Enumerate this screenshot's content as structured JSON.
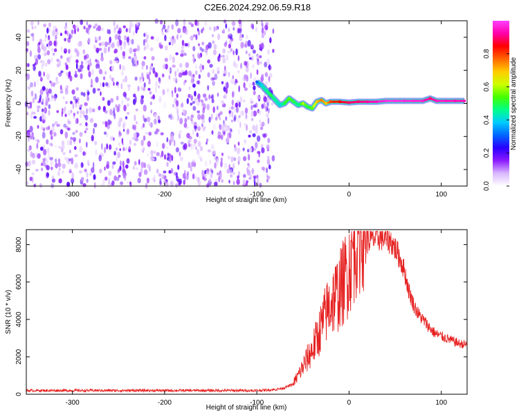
{
  "page_title": "C2E6.2024.292.06.59.R18",
  "chart_data": [
    {
      "type": "heatmap",
      "title": "C2E6.2024.292.06.59.R18",
      "xlabel": "Height of straight line (km)",
      "ylabel": "Frequency (Hz)",
      "xlim": [
        -350,
        128
      ],
      "ylim": [
        -50,
        50
      ],
      "xticks": [
        -300,
        -200,
        -100,
        0,
        100
      ],
      "xtick_labels": [
        "-300",
        "-200",
        "-100",
        "0",
        "100"
      ],
      "yticks": [
        -40,
        -20,
        0,
        20,
        40
      ],
      "ytick_labels": [
        "-40",
        "-20",
        "0",
        "20",
        "40"
      ],
      "noise_region": {
        "x_range": [
          -350,
          -82
        ],
        "freq_range": [
          -50,
          50
        ],
        "typical_amplitude": 0.15
      },
      "signal_ridge": {
        "description_free_points": true,
        "points": [
          {
            "x": -100,
            "freq": 13,
            "amp": 0.3
          },
          {
            "x": -95,
            "freq": 11,
            "amp": 0.4
          },
          {
            "x": -90,
            "freq": 8,
            "amp": 0.45
          },
          {
            "x": -85,
            "freq": 5,
            "amp": 0.5
          },
          {
            "x": -80,
            "freq": 2,
            "amp": 0.45
          },
          {
            "x": -75,
            "freq": -1,
            "amp": 0.4
          },
          {
            "x": -70,
            "freq": 0,
            "amp": 0.5
          },
          {
            "x": -65,
            "freq": 3,
            "amp": 0.55
          },
          {
            "x": -60,
            "freq": 1,
            "amp": 0.5
          },
          {
            "x": -55,
            "freq": -1,
            "amp": 0.45
          },
          {
            "x": -50,
            "freq": 0,
            "amp": 0.6
          },
          {
            "x": -45,
            "freq": -2,
            "amp": 0.5
          },
          {
            "x": -40,
            "freq": -3,
            "amp": 0.55
          },
          {
            "x": -35,
            "freq": 1,
            "amp": 0.7
          },
          {
            "x": -30,
            "freq": 2,
            "amp": 0.75
          },
          {
            "x": -25,
            "freq": 0,
            "amp": 0.7
          },
          {
            "x": -20,
            "freq": 1,
            "amp": 0.8
          },
          {
            "x": -10,
            "freq": 1,
            "amp": 0.85
          },
          {
            "x": 0,
            "freq": 0.5,
            "amp": 0.9
          },
          {
            "x": 10,
            "freq": 1,
            "amp": 0.9
          },
          {
            "x": 20,
            "freq": 1,
            "amp": 0.92
          },
          {
            "x": 30,
            "freq": 1,
            "amp": 0.95
          },
          {
            "x": 40,
            "freq": 1.5,
            "amp": 0.98
          },
          {
            "x": 50,
            "freq": 1.5,
            "amp": 0.98
          },
          {
            "x": 60,
            "freq": 1.5,
            "amp": 0.97
          },
          {
            "x": 70,
            "freq": 1.5,
            "amp": 0.97
          },
          {
            "x": 80,
            "freq": 1.5,
            "amp": 0.96
          },
          {
            "x": 88,
            "freq": 3,
            "amp": 0.9
          },
          {
            "x": 95,
            "freq": 1.5,
            "amp": 0.95
          },
          {
            "x": 105,
            "freq": 1.5,
            "amp": 0.95
          },
          {
            "x": 115,
            "freq": 1.5,
            "amp": 0.94
          },
          {
            "x": 125,
            "freq": 1.5,
            "amp": 0.94
          }
        ]
      },
      "colorbar": {
        "label": "Normalized spectral amplitude",
        "ticks": [
          0.0,
          0.2,
          0.4,
          0.6,
          0.8
        ],
        "tick_labels": [
          "0.0",
          "0.2",
          "0.4",
          "0.6",
          "0.8"
        ],
        "range": [
          0,
          1
        ],
        "colormap": [
          "#ffffff",
          "#d9b8ff",
          "#8c1aff",
          "#2a00ff",
          "#0066ff",
          "#00ccff",
          "#00ff88",
          "#44ff00",
          "#ccff00",
          "#ffcc00",
          "#ff6600",
          "#ff0000",
          "#ff00aa",
          "#ff40ff"
        ]
      }
    },
    {
      "type": "line",
      "xlabel": "Height of straight line (km)",
      "ylabel": "SNR (10 * v/v)",
      "xlim": [
        -350,
        128
      ],
      "ylim": [
        0,
        8800
      ],
      "xticks": [
        -300,
        -200,
        -100,
        0,
        100
      ],
      "xtick_labels": [
        "-300",
        "-200",
        "-100",
        "0",
        "100"
      ],
      "yticks": [
        0,
        2000,
        4000,
        6000,
        8000
      ],
      "ytick_labels": [
        "0",
        "2000",
        "4000",
        "6000",
        "8000"
      ],
      "line_color": "#e62020",
      "series": [
        {
          "x": [
            -350,
            -300,
            -250,
            -200,
            -150,
            -100,
            -80,
            -70,
            -60,
            -55,
            -50,
            -45,
            -40,
            -35,
            -30,
            -25,
            -20,
            -15,
            -10,
            -5,
            0,
            5,
            10,
            15,
            20,
            25,
            30,
            35,
            40,
            45,
            50,
            55,
            60,
            65,
            70,
            75,
            80,
            85,
            90,
            95,
            100,
            105,
            110,
            115,
            120,
            128
          ],
          "values": [
            200,
            200,
            200,
            200,
            200,
            200,
            250,
            350,
            550,
            900,
            1300,
            1700,
            2100,
            2600,
            3200,
            3800,
            4300,
            4600,
            4900,
            5400,
            6000,
            6900,
            7600,
            8000,
            8200,
            8300,
            8350,
            8400,
            8300,
            8200,
            7800,
            7300,
            6600,
            5500,
            4800,
            4300,
            4000,
            3700,
            3400,
            3200,
            3100,
            3000,
            2900,
            2800,
            2700,
            2650
          ]
        }
      ]
    }
  ]
}
